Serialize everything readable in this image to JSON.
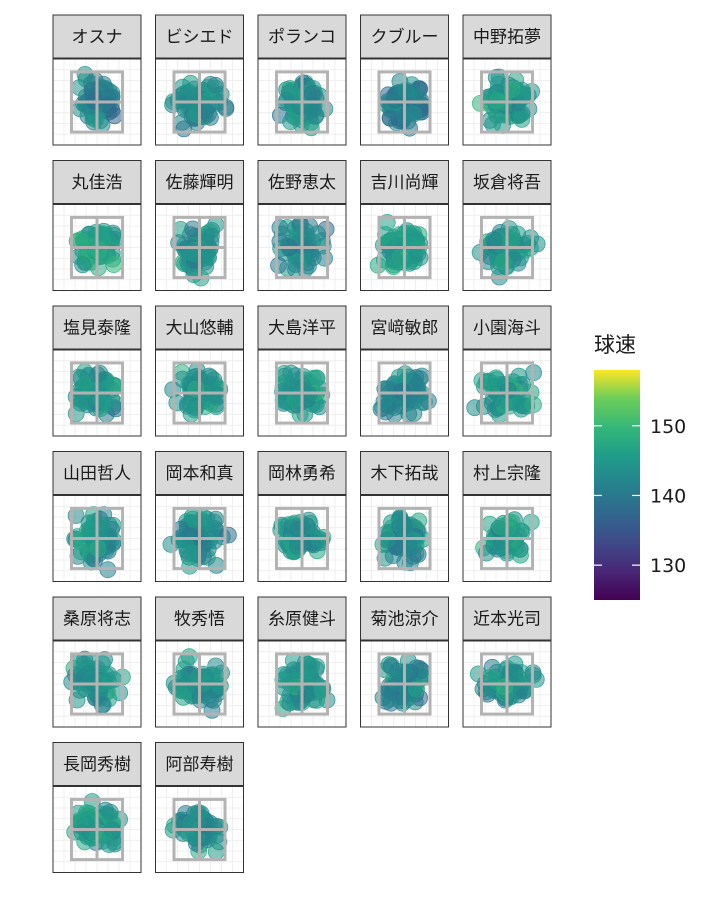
{
  "chart_data": {
    "type": "scatter",
    "facet_layout": {
      "columns": 5,
      "rows": 6
    },
    "panels": [
      {
        "name": "オスナ",
        "mean_speed": 142
      },
      {
        "name": "ビシエド",
        "mean_speed": 143
      },
      {
        "name": "ポランコ",
        "mean_speed": 143
      },
      {
        "name": "クブルー",
        "mean_speed": 141
      },
      {
        "name": "中野拓夢",
        "mean_speed": 145
      },
      {
        "name": "丸佳浩",
        "mean_speed": 146
      },
      {
        "name": "佐藤輝明",
        "mean_speed": 144
      },
      {
        "name": "佐野恵太",
        "mean_speed": 143
      },
      {
        "name": "吉川尚輝",
        "mean_speed": 145
      },
      {
        "name": "坂倉将吾",
        "mean_speed": 144
      },
      {
        "name": "塩見泰隆",
        "mean_speed": 144
      },
      {
        "name": "大山悠輔",
        "mean_speed": 145
      },
      {
        "name": "大島洋平",
        "mean_speed": 144
      },
      {
        "name": "宮﨑敏郎",
        "mean_speed": 142
      },
      {
        "name": "小園海斗",
        "mean_speed": 145
      },
      {
        "name": "山田哲人",
        "mean_speed": 144
      },
      {
        "name": "岡本和真",
        "mean_speed": 143
      },
      {
        "name": "岡林勇希",
        "mean_speed": 144
      },
      {
        "name": "木下拓哉",
        "mean_speed": 143
      },
      {
        "name": "村上宗隆",
        "mean_speed": 145
      },
      {
        "name": "桑原将志",
        "mean_speed": 144
      },
      {
        "name": "牧秀悟",
        "mean_speed": 143
      },
      {
        "name": "糸原健斗",
        "mean_speed": 145
      },
      {
        "name": "菊池涼介",
        "mean_speed": 142
      },
      {
        "name": "近本光司",
        "mean_speed": 144
      },
      {
        "name": "長岡秀樹",
        "mean_speed": 145
      },
      {
        "name": "阿部寿樹",
        "mean_speed": 143
      }
    ],
    "legend": {
      "title": "球速",
      "position": "right",
      "min": 125,
      "max": 158,
      "ticks": [
        130,
        140,
        150
      ],
      "tick_labels": [
        "130",
        "140",
        "150"
      ],
      "palette": "viridis"
    },
    "strike_zone": {
      "grid": "3x3",
      "color": "#b3b3b3"
    },
    "grid": true
  }
}
